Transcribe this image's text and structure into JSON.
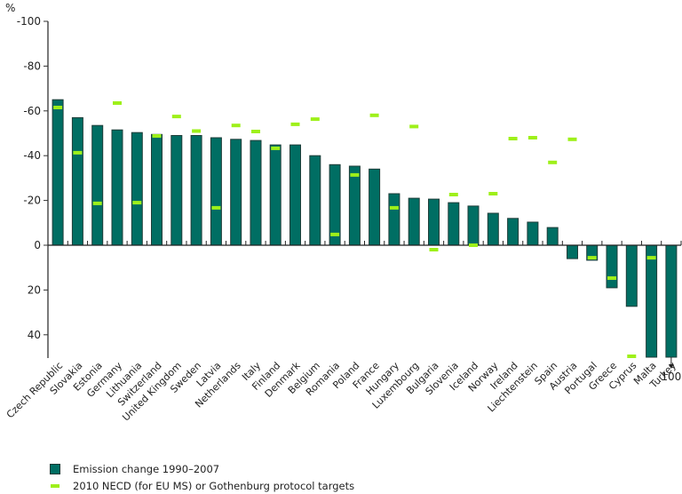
{
  "chart_data": {
    "type": "bar",
    "title": "",
    "ylabel": "%",
    "xlabel": "",
    "ylim": [
      -100,
      50
    ],
    "y_inverted": true,
    "yticks": [
      -100,
      -80,
      -60,
      -40,
      -20,
      0,
      20,
      40
    ],
    "ytick_labels": [
      "-100",
      "-80",
      "-60",
      "-40",
      "-20",
      "0",
      "20",
      "40"
    ],
    "grid": false,
    "legend_position": "bottom-left",
    "colors": {
      "bar": "#006e63",
      "bar_border": "#1f3d39",
      "target": "#9ef01a"
    },
    "categories": [
      "Czech Republic",
      "Slovakia",
      "Estonia",
      "Germany",
      "Lithuania",
      "Switzerland",
      "United Kingdom",
      "Sweden",
      "Latvia",
      "Netherlands",
      "Italy",
      "Finland",
      "Denmark",
      "Belgium",
      "Romania",
      "Poland",
      "France",
      "Hungary",
      "Luxembourg",
      "Bulgaria",
      "Slovenia",
      "Iceland",
      "Norway",
      "Ireland",
      "Liechtenstein",
      "Spain",
      "Austria",
      "Portugal",
      "Greece",
      "Cyprus",
      "Malta",
      "Turkey"
    ],
    "series": [
      {
        "name": "Emission change 1990–2007",
        "kind": "bar",
        "values": [
          -65,
          -57,
          -53.5,
          -51.5,
          -50.3,
          -49.5,
          -49,
          -49,
          -48,
          -47.3,
          -46.8,
          -44.8,
          -44.8,
          -40,
          -36,
          -35.3,
          -34,
          -23,
          -21,
          -20.6,
          -19,
          -17.5,
          -14.3,
          -12,
          -10.3,
          -7.9,
          6,
          6.7,
          19,
          27.3,
          50,
          100
        ]
      },
      {
        "name": "2010 NECD (for EU MS) or Gothenburg protocol targets",
        "kind": "marker",
        "values": [
          -61.5,
          -41.3,
          -18.7,
          -63.5,
          -19,
          -48.8,
          -57.5,
          -51,
          -16.7,
          -53.5,
          -50.8,
          -43.3,
          -54,
          -56.3,
          -4.8,
          -31.4,
          -58,
          -16.7,
          -53,
          2,
          -22.6,
          0,
          -23,
          -47.6,
          -48,
          -37,
          -47.3,
          5.6,
          14.7,
          49.6,
          5.6,
          null
        ]
      }
    ],
    "annotations": [
      {
        "category": "Turkey",
        "text": "100",
        "note": "bar truncated, arrow indicates value beyond axis"
      }
    ]
  },
  "legend": {
    "items": [
      {
        "label": "Emission change 1990–2007"
      },
      {
        "label": "2010 NECD (for EU MS) or Gothenburg protocol targets"
      }
    ]
  }
}
